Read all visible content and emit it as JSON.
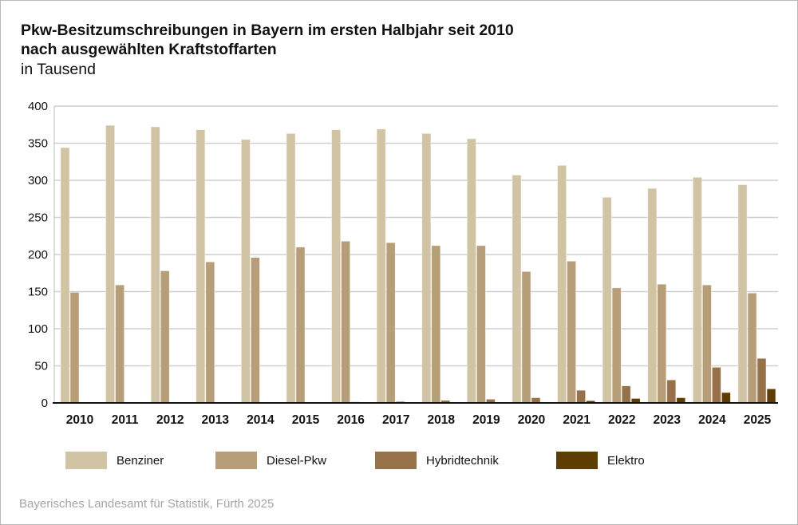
{
  "chart_data": {
    "type": "bar",
    "title": "Pkw-Besitzumschreibungen in Bayern im ersten Halbjahr seit 2010",
    "subtitle": "nach ausgewählten Kraftstoffarten",
    "unit": "in Tausend",
    "categories": [
      "2010",
      "2011",
      "2012",
      "2013",
      "2014",
      "2015",
      "2016",
      "2017",
      "2018",
      "2019",
      "2020",
      "2021",
      "2022",
      "2023",
      "2024",
      "2025"
    ],
    "ylim": [
      0,
      400
    ],
    "yticks": [
      0,
      50,
      100,
      150,
      200,
      250,
      300,
      350,
      400
    ],
    "grid": true,
    "legend_position": "bottom",
    "series": [
      {
        "name": "Benziner",
        "color": "#d1c4a5",
        "values": [
          344,
          374,
          372,
          368,
          355,
          363,
          368,
          369,
          363,
          356,
          307,
          320,
          277,
          289,
          304,
          294
        ]
      },
      {
        "name": "Diesel-Pkw",
        "color": "#b59e78",
        "values": [
          149,
          159,
          178,
          190,
          196,
          210,
          218,
          216,
          212,
          212,
          177,
          191,
          155,
          160,
          159,
          148
        ]
      },
      {
        "name": "Hybridtechnik",
        "color": "#96714a",
        "values": [
          0,
          0.3,
          0.3,
          0.4,
          0.5,
          0.7,
          1.5,
          2,
          3.5,
          5,
          7,
          17,
          23,
          31,
          48,
          60
        ]
      },
      {
        "name": "Elektro",
        "color": "#5e3d00",
        "values": [
          0,
          0,
          0,
          0,
          0,
          0.1,
          0.2,
          0.3,
          0.4,
          0.6,
          0.8,
          3,
          6,
          7,
          14,
          19
        ]
      }
    ],
    "source": "Bayerisches Landesamt für Statistik, Fürth 2025"
  }
}
